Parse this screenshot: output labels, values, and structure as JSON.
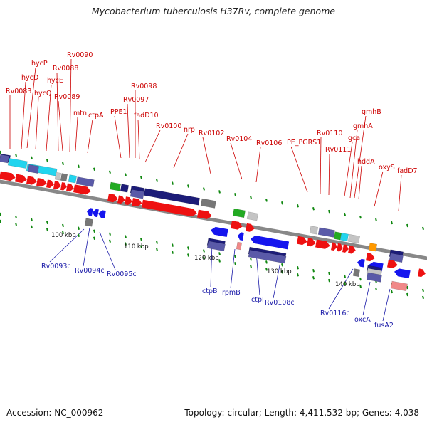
{
  "title": "Mycobacterium tuberculosis H37Rv, complete genome",
  "footer": {
    "accession": "Accession: NC_000962",
    "summary": "Topology: circular; Length: 4,411,532 bp; Genes: 4,038"
  },
  "colors": {
    "forward": "#ee1111",
    "reverse": "#1515ee",
    "backbone": "#888888",
    "navy": "#1c1c78",
    "slate": "#5a5aa8",
    "gray": "#777777",
    "lightgray": "#c4c4c4",
    "cyan": "#22d4ee",
    "green": "#22aa22",
    "orange": "#ff9900",
    "pink": "#f08888",
    "top_label": "#cc0000",
    "bottom_label": "#1a1aa8",
    "tick_green": "#118811"
  },
  "scale_labels": [
    "100 kbp",
    "110 kbp",
    "120 kbp",
    "130 kbp",
    "140 kbp"
  ],
  "top_labels": [
    "Rv0083",
    "hycD",
    "hycP",
    "hycQ",
    "hycE",
    "Rv0088",
    "Rv0089",
    "Rv0090",
    "mtn",
    "ctpA",
    "PPE1",
    "Rv0097",
    "Rv0098",
    "fadD10",
    "Rv0100",
    "nrp",
    "Rv0102",
    "Rv0104",
    "Rv0106",
    "PE_PGRS1",
    "Rv0110",
    "Rv0111",
    "gca",
    "gmhA",
    "gmhB",
    "hddA",
    "oxyS",
    "fadD7"
  ],
  "bottom_labels": [
    "Rv0093c",
    "Rv0094c",
    "Rv0095c",
    "ctpB",
    "rpmB",
    "ctpI",
    "Rv0108c",
    "Rv0116c",
    "oxcA",
    "fusA2"
  ]
}
